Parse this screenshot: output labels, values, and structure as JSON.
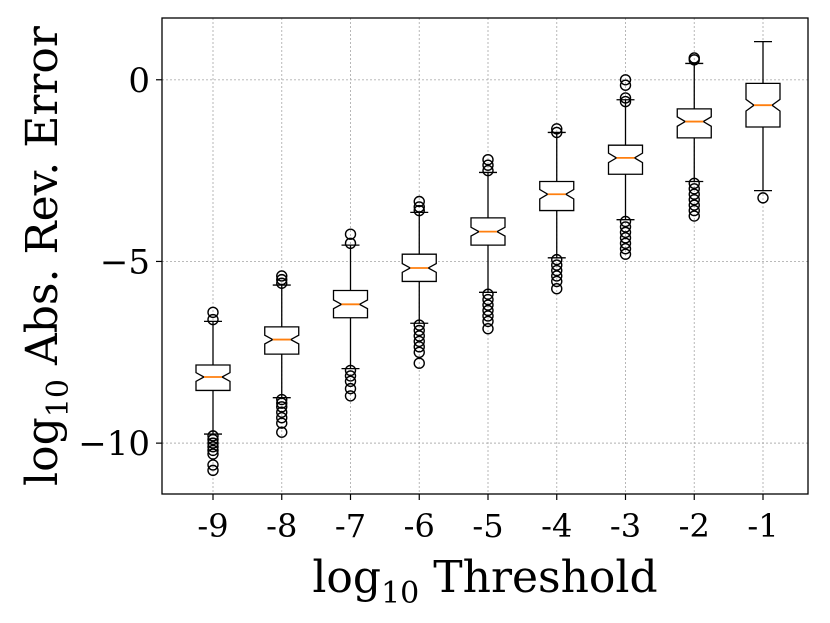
{
  "chart_data": {
    "type": "boxplot",
    "notched": true,
    "xlabel": "log",
    "xlabel_sub": "10",
    "xlabel_rest": " Threshold",
    "ylabel": "log",
    "ylabel_sub": "10",
    "ylabel_rest": " Abs. Rev. Error",
    "ylim": [
      -11.4,
      1.7
    ],
    "grid": true,
    "colors": {
      "box": "#000000",
      "median": "#ff7f0e",
      "grid": "#b0b0b0"
    },
    "yticks": [
      {
        "value": 0,
        "label": "0"
      },
      {
        "value": -5,
        "label": "−5"
      },
      {
        "value": -10,
        "label": "−10"
      }
    ],
    "categories": [
      "-9",
      "-8",
      "-7",
      "-6",
      "-5",
      "-4",
      "-3",
      "-2",
      "-1"
    ],
    "boxes": [
      {
        "category": "-9",
        "whislo": -9.75,
        "q1": -8.55,
        "med": -8.18,
        "q3": -7.85,
        "whishi": -6.65,
        "notch_lo": -8.3,
        "notch_hi": -8.06,
        "fliers": [
          -6.4,
          -6.6,
          -9.8,
          -9.9,
          -10.0,
          -10.1,
          -10.2,
          -10.3,
          -10.6,
          -10.75
        ]
      },
      {
        "category": "-8",
        "whislo": -8.75,
        "q1": -7.55,
        "med": -7.15,
        "q3": -6.8,
        "whishi": -5.65,
        "notch_lo": -7.27,
        "notch_hi": -7.03,
        "fliers": [
          -5.4,
          -5.5,
          -5.6,
          -8.8,
          -8.9,
          -9.0,
          -9.15,
          -9.3,
          -9.45,
          -9.7
        ]
      },
      {
        "category": "-7",
        "whislo": -7.95,
        "q1": -6.55,
        "med": -6.18,
        "q3": -5.8,
        "whishi": -4.55,
        "notch_lo": -6.3,
        "notch_hi": -6.06,
        "fliers": [
          -4.25,
          -4.5,
          -8.0,
          -8.15,
          -8.3,
          -8.5,
          -8.7
        ]
      },
      {
        "category": "-6",
        "whislo": -6.7,
        "q1": -5.55,
        "med": -5.18,
        "q3": -4.8,
        "whishi": -3.65,
        "notch_lo": -5.3,
        "notch_hi": -5.06,
        "fliers": [
          -3.35,
          -3.5,
          -3.6,
          -6.75,
          -6.9,
          -7.05,
          -7.2,
          -7.35,
          -7.5,
          -7.8
        ]
      },
      {
        "category": "-5",
        "whislo": -5.85,
        "q1": -4.55,
        "med": -4.18,
        "q3": -3.8,
        "whishi": -2.55,
        "notch_lo": -4.3,
        "notch_hi": -4.06,
        "fliers": [
          -2.2,
          -2.35,
          -2.5,
          -5.9,
          -6.05,
          -6.2,
          -6.35,
          -6.5,
          -6.65,
          -6.85
        ]
      },
      {
        "category": "-4",
        "whislo": -4.9,
        "q1": -3.6,
        "med": -3.15,
        "q3": -2.8,
        "whishi": -1.45,
        "notch_lo": -3.28,
        "notch_hi": -3.02,
        "fliers": [
          -1.35,
          -1.45,
          -4.95,
          -5.1,
          -5.25,
          -5.4,
          -5.55,
          -5.75
        ]
      },
      {
        "category": "-3",
        "whislo": -3.85,
        "q1": -2.6,
        "med": -2.15,
        "q3": -1.8,
        "whishi": -0.55,
        "notch_lo": -2.28,
        "notch_hi": -2.02,
        "fliers": [
          0.0,
          -0.15,
          -0.5,
          -0.6,
          -3.9,
          -4.05,
          -4.2,
          -4.35,
          -4.5,
          -4.65,
          -4.8
        ]
      },
      {
        "category": "-2",
        "whislo": -2.8,
        "q1": -1.6,
        "med": -1.15,
        "q3": -0.8,
        "whishi": 0.45,
        "notch_lo": -1.28,
        "notch_hi": -1.02,
        "fliers": [
          0.6,
          0.55,
          -2.85,
          -3.0,
          -3.15,
          -3.3,
          -3.45,
          -3.6,
          -3.75
        ]
      },
      {
        "category": "-1",
        "whislo": -3.05,
        "q1": -1.3,
        "med": -0.7,
        "q3": -0.1,
        "whishi": 1.05,
        "notch_lo": -0.86,
        "notch_hi": -0.54,
        "fliers": [
          -3.25
        ]
      }
    ]
  }
}
